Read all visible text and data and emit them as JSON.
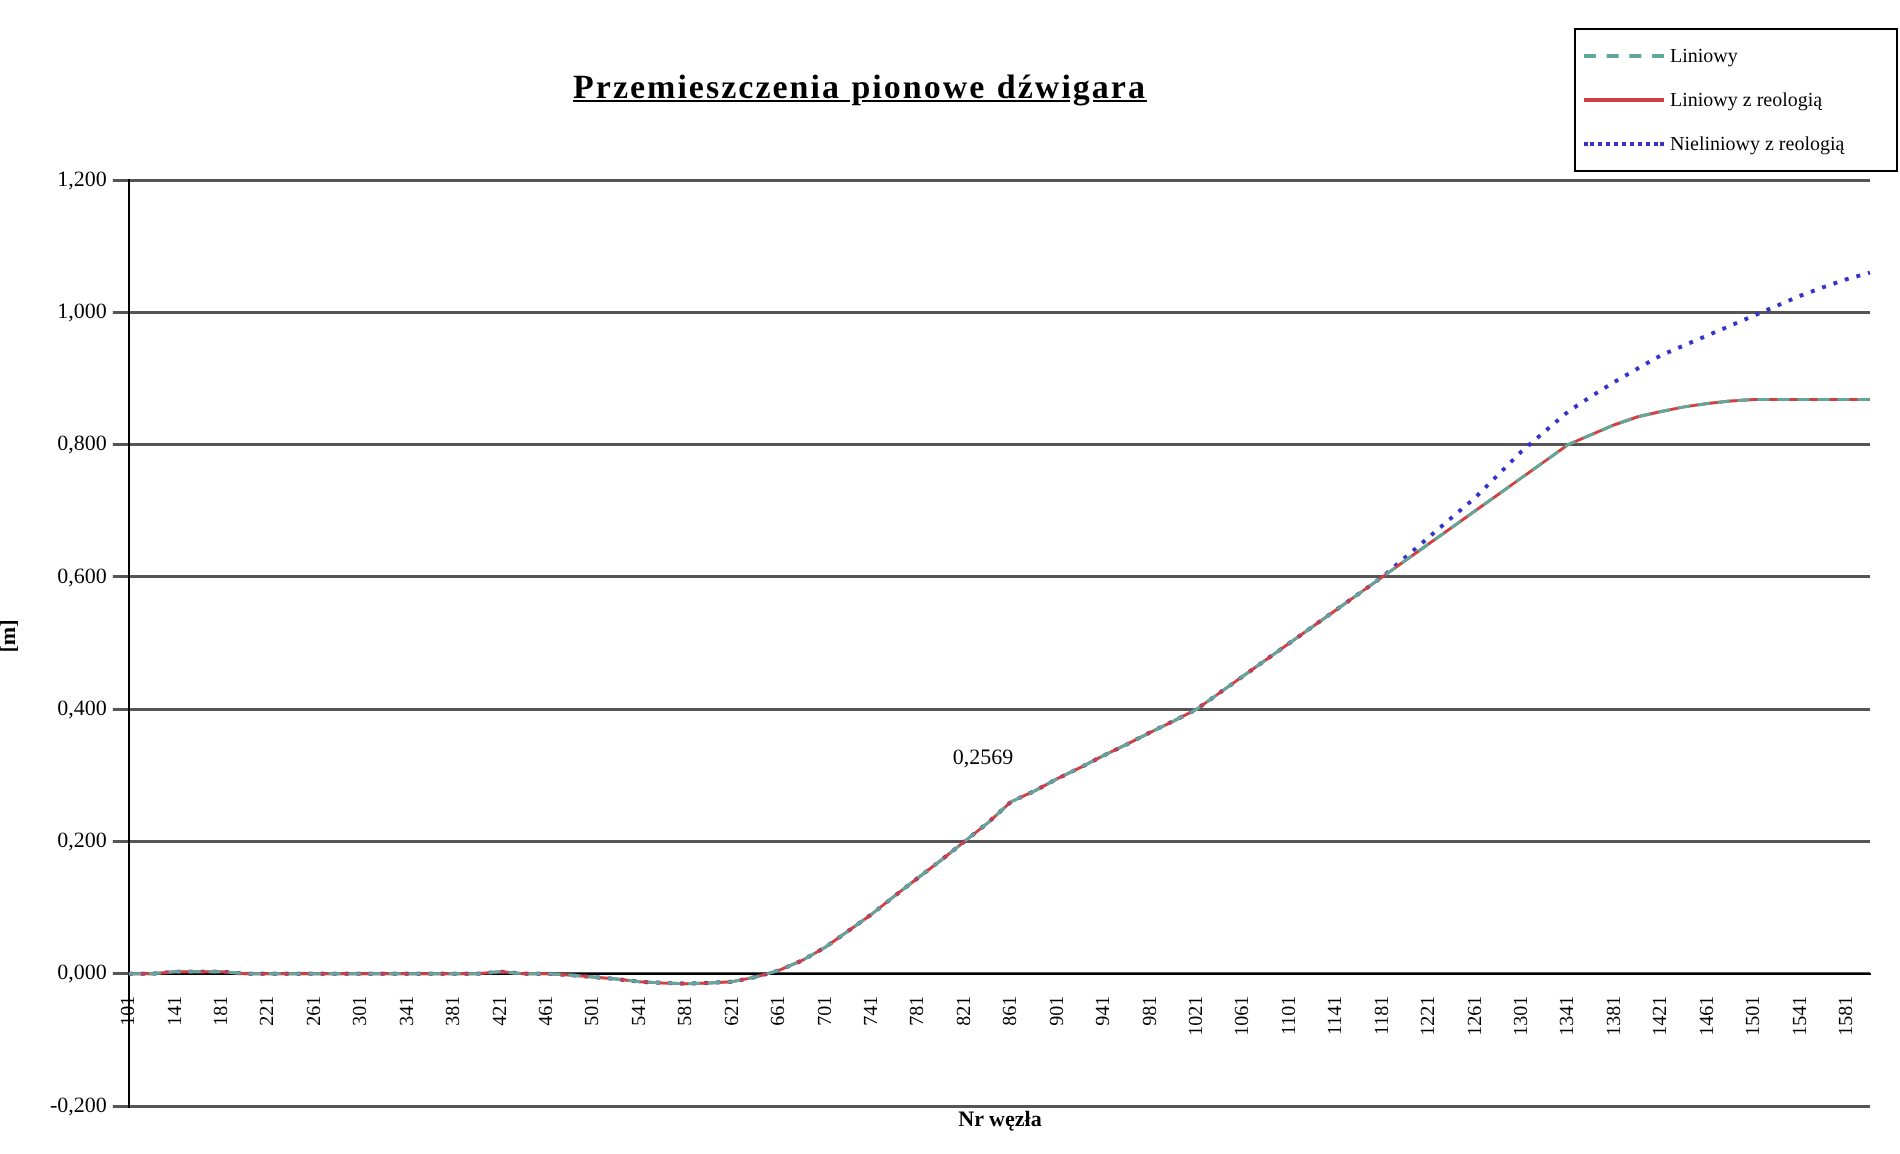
{
  "chart_data": {
    "type": "line",
    "title": "Przemieszczenia pionowe dźwigara",
    "xlabel": "Nr węzła",
    "ylabel": "[m]",
    "categories": [
      "101",
      null,
      "141",
      null,
      "181",
      null,
      "221",
      null,
      "261",
      null,
      "301",
      null,
      "341",
      null,
      "381",
      null,
      "421",
      null,
      "461",
      null,
      "501",
      null,
      "541",
      null,
      "581",
      null,
      "621",
      null,
      "661",
      null,
      "701",
      null,
      "741",
      null,
      "781",
      null,
      "821",
      null,
      "861",
      null,
      "901",
      null,
      "941",
      null,
      "981",
      null,
      "1021",
      null,
      "1061",
      null,
      "1101",
      null,
      "1141",
      null,
      "1181",
      null,
      "1221",
      null,
      "1261",
      null,
      "1301",
      null,
      "1341",
      null,
      "1381",
      null,
      "1421",
      null,
      "1461",
      null,
      "1501",
      null,
      "1541",
      null,
      "1581",
      null
    ],
    "series": [
      {
        "name": "Liniowy",
        "color": "#5fa89a",
        "line_style": "dashed",
        "values": [
          0,
          0,
          0.003,
          0.003,
          0.003,
          0,
          0,
          0,
          0,
          0,
          0,
          0,
          0,
          0,
          0,
          0,
          0.003,
          0,
          0,
          -0.002,
          -0.005,
          -0.008,
          -0.012,
          -0.014,
          -0.015,
          -0.014,
          -0.012,
          -0.005,
          0.005,
          0.02,
          0.04,
          0.065,
          0.09,
          0.118,
          0.145,
          0.172,
          0.2,
          0.228,
          0.26,
          0.276,
          0.295,
          0.312,
          0.33,
          0.347,
          0.365,
          0.382,
          0.4,
          0.425,
          0.45,
          0.475,
          0.5,
          0.525,
          0.55,
          0.575,
          0.6,
          0.625,
          0.65,
          0.675,
          0.7,
          0.725,
          0.75,
          0.775,
          0.8,
          0.815,
          0.83,
          0.842,
          0.85,
          0.857,
          0.862,
          0.866,
          0.868,
          0.868,
          0.868,
          0.868,
          0.868,
          0.868
        ]
      },
      {
        "name": "Liniowy z reologią",
        "color": "#d04040",
        "line_style": "solid",
        "values": [
          0,
          0,
          0.003,
          0.003,
          0.003,
          0,
          0,
          0,
          0,
          0,
          0,
          0,
          0,
          0,
          0,
          0,
          0.003,
          0,
          0,
          -0.002,
          -0.005,
          -0.008,
          -0.012,
          -0.014,
          -0.015,
          -0.014,
          -0.012,
          -0.005,
          0.005,
          0.02,
          0.04,
          0.065,
          0.09,
          0.118,
          0.145,
          0.172,
          0.2,
          0.228,
          0.26,
          0.276,
          0.295,
          0.312,
          0.33,
          0.347,
          0.365,
          0.382,
          0.4,
          0.425,
          0.45,
          0.475,
          0.5,
          0.525,
          0.55,
          0.575,
          0.6,
          0.625,
          0.65,
          0.675,
          0.7,
          0.725,
          0.75,
          0.775,
          0.8,
          0.815,
          0.83,
          0.842,
          0.85,
          0.857,
          0.862,
          0.866,
          0.868,
          0.868,
          0.868,
          0.868,
          0.868,
          0.868
        ]
      },
      {
        "name": "Nieliniowy z reologią",
        "color": "#3333cc",
        "line_style": "dotted",
        "values": [
          0,
          0,
          0.003,
          0.003,
          0.003,
          0,
          0,
          0,
          0,
          0,
          0,
          0,
          0,
          0,
          0,
          0,
          0.003,
          0,
          0,
          -0.002,
          -0.005,
          -0.008,
          -0.012,
          -0.014,
          -0.015,
          -0.014,
          -0.012,
          -0.005,
          0.005,
          0.02,
          0.04,
          0.065,
          0.09,
          0.118,
          0.145,
          0.172,
          0.2,
          0.228,
          0.26,
          0.276,
          0.295,
          0.312,
          0.33,
          0.347,
          0.365,
          0.382,
          0.4,
          0.425,
          0.45,
          0.475,
          0.5,
          0.525,
          0.55,
          0.575,
          0.6,
          0.63,
          0.66,
          0.69,
          0.72,
          0.755,
          0.79,
          0.82,
          0.85,
          0.873,
          0.895,
          0.915,
          0.935,
          0.95,
          0.965,
          0.98,
          0.995,
          1.01,
          1.025,
          1.038,
          1.05,
          1.06
        ]
      }
    ],
    "ylim": [
      -0.2,
      1.2
    ],
    "yticks": [
      {
        "value": -0.2,
        "label": "-0,200"
      },
      {
        "value": 0,
        "label": "0,000"
      },
      {
        "value": 0.2,
        "label": "0,200"
      },
      {
        "value": 0.4,
        "label": "0,400"
      },
      {
        "value": 0.6,
        "label": "0,600"
      },
      {
        "value": 0.8,
        "label": "0,800"
      },
      {
        "value": 1,
        "label": "1,000"
      },
      {
        "value": 1.2,
        "label": "1,200"
      }
    ],
    "grid": "y",
    "legend": "top right",
    "marker": "none",
    "annotations": [
      {
        "text": "0,2569",
        "x": "861",
        "y": 0.2569
      }
    ]
  }
}
